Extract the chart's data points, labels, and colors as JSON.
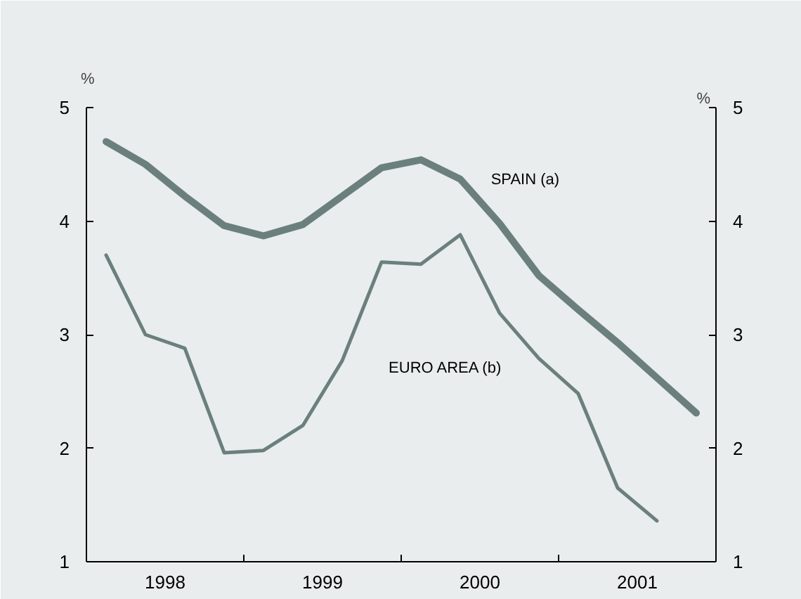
{
  "chart_data": {
    "type": "line",
    "ylabel": "%",
    "y2label": "%",
    "x": [
      1998.125,
      1998.375,
      1998.625,
      1998.875,
      1999.125,
      1999.375,
      1999.625,
      1999.875,
      2000.125,
      2000.375,
      2000.625,
      2000.875,
      2001.125,
      2001.375,
      2001.625,
      2001.875
    ],
    "series": [
      {
        "name": "SPAIN (a)",
        "color": "#6b807c",
        "values": [
          4.7,
          4.5,
          4.22,
          3.96,
          3.87,
          3.97,
          4.22,
          4.47,
          4.54,
          4.37,
          3.98,
          3.52,
          3.22,
          2.93,
          2.62,
          2.31
        ]
      },
      {
        "name": "EURO AREA (b)",
        "color": "#6b807c",
        "x": [
          1998.125,
          1998.375,
          1998.625,
          1998.875,
          1999.125,
          1999.375,
          1999.625,
          1999.875,
          2000.125,
          2000.375,
          2000.625,
          2000.875,
          2001.125,
          2001.375,
          2001.625
        ],
        "values": [
          3.7,
          3.0,
          2.88,
          1.96,
          1.98,
          2.2,
          2.77,
          3.64,
          3.62,
          3.88,
          3.19,
          2.79,
          2.48,
          1.65,
          1.36
        ]
      }
    ],
    "xlim": [
      1998,
      2002
    ],
    "xticks": [
      {
        "value": 1998.5,
        "label": "1998"
      },
      {
        "value": 1999,
        "label": null
      },
      {
        "value": 1999.5,
        "label": "1999"
      },
      {
        "value": 2000,
        "label": null
      },
      {
        "value": 2000.5,
        "label": "2000"
      },
      {
        "value": 2001,
        "label": null
      },
      {
        "value": 2001.5,
        "label": "2001"
      }
    ],
    "ylim": [
      1,
      5
    ],
    "yticks": [
      1,
      2,
      3,
      4,
      5
    ],
    "y2lim": [
      1,
      5
    ],
    "y2ticks": [
      1,
      2,
      3,
      4,
      5
    ],
    "grid": false,
    "legend": false,
    "marker": "none",
    "line_style": "solid"
  }
}
